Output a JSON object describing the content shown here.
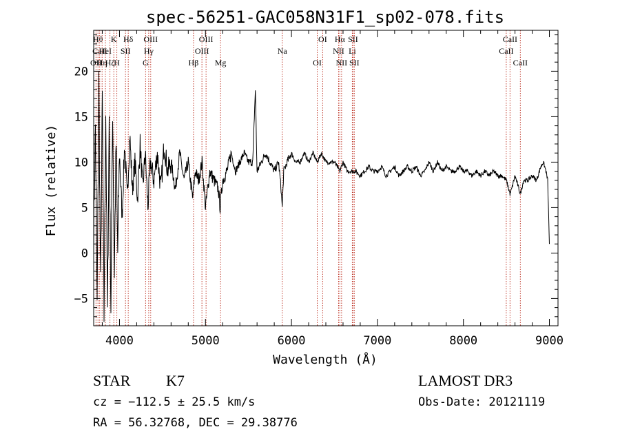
{
  "chart_data": {
    "type": "line",
    "title": "spec-56251-GAC058N31F1_sp02-078.fits",
    "xlabel": "Wavelength (Å)",
    "ylabel": "Flux (relative)",
    "xlim": [
      3700,
      9100
    ],
    "ylim": [
      -8,
      24.5
    ],
    "x_ticks": [
      4000,
      5000,
      6000,
      7000,
      8000,
      9000
    ],
    "x_tick_labels": [
      "4000",
      "5000",
      "6000",
      "7000",
      "8000",
      "9000"
    ],
    "y_ticks": [
      -5,
      0,
      5,
      10,
      15,
      20
    ],
    "y_tick_labels": [
      "−5",
      "0",
      "5",
      "10",
      "15",
      "20"
    ],
    "series": [
      {
        "name": "flux",
        "x": [
          3700,
          3720,
          3740,
          3760,
          3780,
          3800,
          3820,
          3840,
          3860,
          3880,
          3900,
          3920,
          3940,
          3960,
          3980,
          4000,
          4030,
          4060,
          4090,
          4120,
          4150,
          4180,
          4210,
          4240,
          4270,
          4300,
          4330,
          4360,
          4400,
          4440,
          4480,
          4520,
          4560,
          4600,
          4650,
          4700,
          4750,
          4800,
          4850,
          4880,
          4920,
          4960,
          5000,
          5050,
          5100,
          5150,
          5170,
          5200,
          5250,
          5300,
          5350,
          5400,
          5450,
          5500,
          5550,
          5580,
          5600,
          5650,
          5700,
          5750,
          5800,
          5850,
          5880,
          5893,
          5910,
          5950,
          6000,
          6050,
          6100,
          6150,
          6200,
          6250,
          6300,
          6350,
          6400,
          6450,
          6500,
          6563,
          6600,
          6650,
          6700,
          6750,
          6800,
          6850,
          6900,
          6950,
          7000,
          7050,
          7100,
          7150,
          7200,
          7250,
          7300,
          7350,
          7400,
          7450,
          7500,
          7550,
          7600,
          7650,
          7700,
          7750,
          7800,
          7850,
          7900,
          7950,
          8000,
          8050,
          8100,
          8150,
          8200,
          8250,
          8300,
          8350,
          8400,
          8450,
          8500,
          8542,
          8560,
          8600,
          8662,
          8700,
          8750,
          8800,
          8850,
          8900,
          8930,
          8960,
          8980,
          9000
        ],
        "y": [
          2,
          14,
          -6,
          19,
          -4,
          17,
          -7,
          16,
          -7,
          15,
          -6,
          16,
          -2,
          12,
          0,
          11,
          4,
          12,
          6,
          13,
          7,
          10,
          6,
          12,
          7,
          11,
          5,
          10,
          8,
          11,
          7,
          12,
          9,
          10,
          7,
          11,
          8,
          10,
          6,
          9,
          8,
          10,
          5,
          9,
          8,
          7,
          5,
          8,
          9,
          11,
          9,
          10,
          11,
          10,
          10,
          18,
          9,
          10,
          11,
          10,
          9,
          10,
          7,
          5,
          9,
          10,
          11,
          10,
          10,
          11,
          10,
          11,
          10,
          11,
          10,
          10,
          10,
          9,
          10,
          9,
          9,
          9,
          8.5,
          9,
          9.5,
          9,
          9,
          9.5,
          8.5,
          9,
          9.5,
          8.5,
          9,
          9.5,
          9,
          9.5,
          8.5,
          9,
          10,
          9,
          10,
          9,
          9.5,
          9,
          9,
          9.5,
          9,
          9,
          8.5,
          9,
          8.5,
          9,
          8.5,
          9,
          8.5,
          8.5,
          8,
          6.5,
          7,
          8.5,
          6.5,
          8,
          8,
          8.5,
          8,
          9.5,
          10,
          9,
          8,
          1
        ]
      }
    ],
    "line_markers": [
      {
        "x": 3750,
        "label": "Hθ",
        "row": 0
      },
      {
        "x": 3727,
        "label": "OII",
        "row": 2
      },
      {
        "x": 3770,
        "label": "CaII",
        "row": 1
      },
      {
        "x": 3798,
        "label": "Hη",
        "row": 2
      },
      {
        "x": 3836,
        "label": "HeI",
        "row": 1
      },
      {
        "x": 3889,
        "label": "Hζ",
        "row": 2
      },
      {
        "x": 3934,
        "label": "K",
        "row": 0
      },
      {
        "x": 3969,
        "label": "H",
        "row": 2
      },
      {
        "x": 4070,
        "label": "SII",
        "row": 1
      },
      {
        "x": 4102,
        "label": "Hδ",
        "row": 0
      },
      {
        "x": 4304,
        "label": "G",
        "row": 2
      },
      {
        "x": 4340,
        "label": "Hγ",
        "row": 1
      },
      {
        "x": 4363,
        "label": "OIII",
        "row": 0
      },
      {
        "x": 4861,
        "label": "Hβ",
        "row": 2
      },
      {
        "x": 4959,
        "label": "OIII",
        "row": 1
      },
      {
        "x": 5007,
        "label": "OIII",
        "row": 0
      },
      {
        "x": 5175,
        "label": "Mg",
        "row": 2
      },
      {
        "x": 5893,
        "label": "Na",
        "row": 1
      },
      {
        "x": 6300,
        "label": "OI",
        "row": 2
      },
      {
        "x": 6363,
        "label": "OI",
        "row": 0
      },
      {
        "x": 6548,
        "label": "NII",
        "row": 1
      },
      {
        "x": 6563,
        "label": "Hα",
        "row": 0
      },
      {
        "x": 6583,
        "label": "NII",
        "row": 2
      },
      {
        "x": 6708,
        "label": "Li",
        "row": 1
      },
      {
        "x": 6716,
        "label": "SII",
        "row": 0
      },
      {
        "x": 6731,
        "label": "SII",
        "row": 2
      },
      {
        "x": 8498,
        "label": "CaII",
        "row": 1
      },
      {
        "x": 8542,
        "label": "CaII",
        "row": 0
      },
      {
        "x": 8662,
        "label": "CaII",
        "row": 2
      }
    ]
  },
  "info": {
    "object_class": "STAR",
    "subclass": "K7",
    "survey": "LAMOST DR3",
    "redshift": "cz = −112.5 ± 25.5 km/s",
    "obs_date": "Obs-Date: 20121119",
    "coords": "RA =  56.32768, DEC =  29.38776"
  }
}
